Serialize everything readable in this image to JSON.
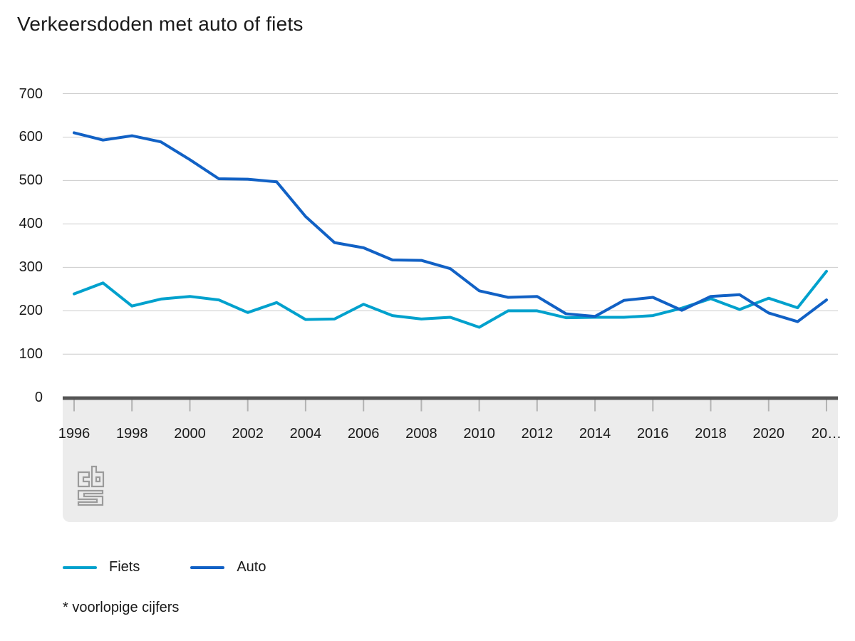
{
  "title": "Verkeersdoden met auto of fiets",
  "footnote": "* voorlopige cijfers",
  "legend": {
    "items": [
      {
        "label": "Fiets",
        "color": "#00a1cd"
      },
      {
        "label": "Auto",
        "color": "#1161c5"
      }
    ]
  },
  "logo": {
    "name": "cbs-logo",
    "color": "#9b9b9b"
  },
  "colors": {
    "gridline": "#cccccc",
    "zero_axis_bar": "#555555",
    "tick": "#b3b3b3",
    "band": "#ececec",
    "text": "#1a1a1a"
  },
  "chart_data": {
    "type": "line",
    "x": [
      1996,
      1997,
      1998,
      1999,
      2000,
      2001,
      2002,
      2003,
      2004,
      2005,
      2006,
      2007,
      2008,
      2009,
      2010,
      2011,
      2012,
      2013,
      2014,
      2015,
      2016,
      2017,
      2018,
      2019,
      2020,
      2021,
      2022
    ],
    "series": [
      {
        "name": "Fiets",
        "color": "#00a1cd",
        "values": [
          239,
          264,
          211,
          227,
          233,
          225,
          196,
          219,
          180,
          181,
          215,
          189,
          181,
          185,
          162,
          200,
          200,
          184,
          185,
          185,
          189,
          206,
          228,
          203,
          229,
          207,
          291
        ]
      },
      {
        "name": "Auto",
        "color": "#1161c5",
        "values": [
          610,
          593,
          603,
          589,
          548,
          504,
          503,
          497,
          417,
          357,
          345,
          317,
          316,
          297,
          246,
          231,
          233,
          193,
          187,
          224,
          231,
          201,
          233,
          237,
          195,
          175,
          225
        ]
      }
    ],
    "title": "Verkeersdoden met auto of fiets",
    "xlabel": "",
    "ylabel": "",
    "ylim": [
      0,
      700
    ],
    "yticks": [
      0,
      100,
      200,
      300,
      400,
      500,
      600,
      700
    ],
    "xtick_labels": [
      "1996",
      "1998",
      "2000",
      "2002",
      "2004",
      "2006",
      "2008",
      "2010",
      "2012",
      "2014",
      "2016",
      "2018",
      "2020",
      "20…"
    ],
    "grid": true,
    "legend_position": "bottom",
    "note": "* voorlopige cijfers"
  }
}
